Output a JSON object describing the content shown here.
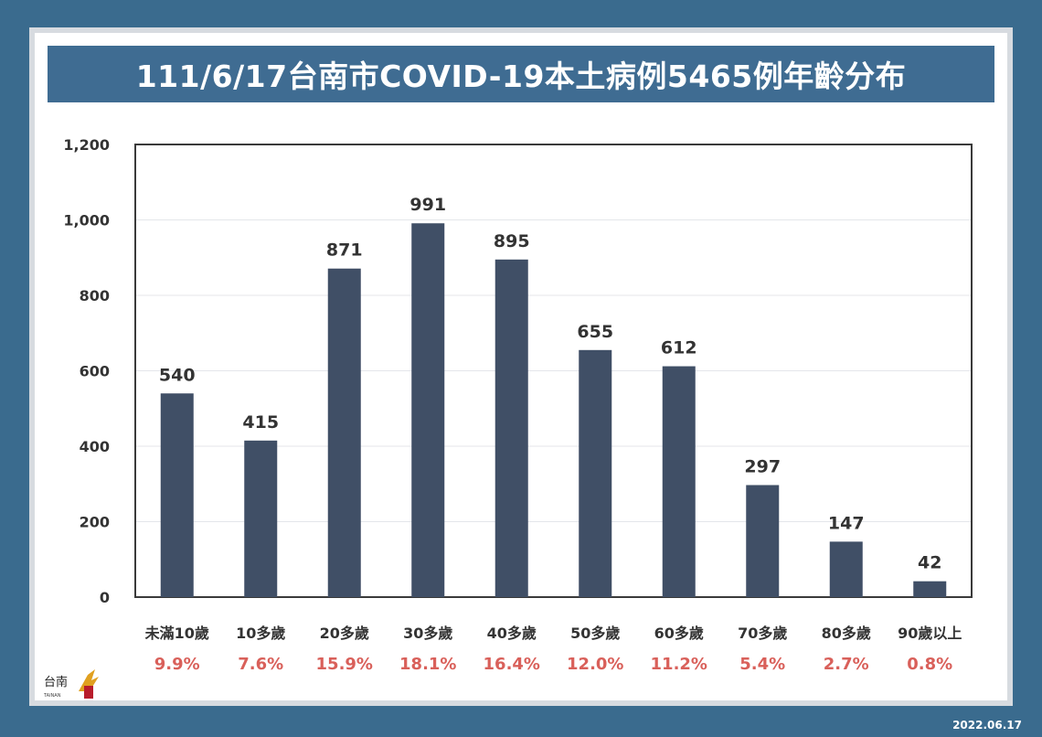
{
  "title": "111/6/17台南市COVID-19本土病例5465例年齡分布",
  "date_stamp": "2022.06.17",
  "colors": {
    "bar": "#404f66",
    "pct": "#d9605a",
    "title_bg": "#3f6c92",
    "frame": "#3a6b8e"
  },
  "logo": {
    "icon": "tainan-city-logo-icon"
  },
  "chart_data": {
    "type": "bar",
    "categories": [
      "未滿10歲",
      "10多歲",
      "20多歲",
      "30多歲",
      "40多歲",
      "50多歲",
      "60多歲",
      "70多歲",
      "80多歲",
      "90歲以上"
    ],
    "values": [
      540,
      415,
      871,
      991,
      895,
      655,
      612,
      297,
      147,
      42
    ],
    "data_labels": [
      "540",
      "415",
      "871",
      "991",
      "895",
      "655",
      "612",
      "297",
      "147",
      "42"
    ],
    "percentages": [
      "9.9%",
      "7.6%",
      "15.9%",
      "18.1%",
      "16.4%",
      "12.0%",
      "11.2%",
      "5.4%",
      "2.7%",
      "0.8%"
    ],
    "y_ticks": [
      0,
      200,
      400,
      600,
      800,
      1000,
      1200
    ],
    "y_tick_labels": [
      "0",
      "200",
      "400",
      "600",
      "800",
      "1,000",
      "1,200"
    ],
    "ylim": [
      0,
      1200
    ],
    "grid": true,
    "legend": "none"
  }
}
